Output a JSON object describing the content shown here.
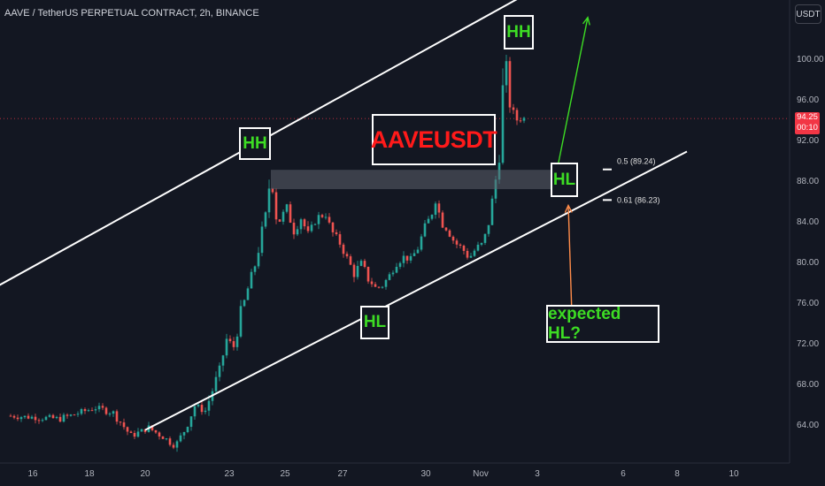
{
  "header": {
    "title": "AAVE / TetherUS PERPETUAL CONTRACT, 2h, BINANCE"
  },
  "currency_button": "USDT",
  "current_price": {
    "value": "94.25",
    "countdown": "00:10",
    "color": "#f23645"
  },
  "colors": {
    "background": "#131722",
    "up": "#26a69a",
    "down": "#ef5350",
    "accent_green": "#3ddc24",
    "title_red": "#ff1a1a"
  },
  "chart_data": {
    "type": "candlestick",
    "symbol": "AAVEUSDT",
    "yticks": [
      "100.00",
      "96.00",
      "92.00",
      "88.00",
      "84.00",
      "80.00",
      "76.00",
      "72.00",
      "68.00",
      "64.00"
    ],
    "xticks": [
      "16",
      "18",
      "20",
      "23",
      "25",
      "27",
      "30",
      "Nov",
      "3",
      "6",
      "8",
      "10"
    ],
    "ylim": [
      61.5,
      104.5
    ],
    "price_path": [
      [
        0,
        65.0
      ],
      [
        3,
        64.7
      ],
      [
        5,
        65.8
      ],
      [
        6,
        65.3
      ],
      [
        7,
        63.0
      ],
      [
        8,
        63.8
      ],
      [
        9,
        62.7
      ],
      [
        9.5,
        62.0
      ],
      [
        10,
        63.5
      ],
      [
        10.6,
        66.0
      ],
      [
        11.2,
        65.5
      ],
      [
        12,
        69.5
      ],
      [
        12.4,
        72.5
      ],
      [
        12.8,
        71.8
      ],
      [
        13.2,
        75.0
      ],
      [
        13.6,
        77.5
      ],
      [
        14,
        79.8
      ],
      [
        14.4,
        83.0
      ],
      [
        14.7,
        85.5
      ],
      [
        14.9,
        89.5
      ],
      [
        15.1,
        85.0
      ],
      [
        15.4,
        84.2
      ],
      [
        15.8,
        85.5
      ],
      [
        16.2,
        83.2
      ],
      [
        16.6,
        84.5
      ],
      [
        17,
        82.8
      ],
      [
        17.5,
        84.5
      ],
      [
        18,
        84.8
      ],
      [
        18.3,
        83.2
      ],
      [
        18.8,
        82.0
      ],
      [
        19.2,
        80.5
      ],
      [
        19.6,
        79.0
      ],
      [
        20,
        80.0
      ],
      [
        20.4,
        78.5
      ],
      [
        20.8,
        77.6
      ],
      [
        21.2,
        77.8
      ],
      [
        21.6,
        78.8
      ],
      [
        22,
        80.2
      ],
      [
        22.4,
        80.6
      ],
      [
        22.8,
        80.4
      ],
      [
        23.2,
        81.5
      ],
      [
        23.6,
        83.5
      ],
      [
        24.0,
        85.0
      ],
      [
        24.2,
        86.5
      ],
      [
        24.5,
        84.2
      ],
      [
        24.9,
        83.2
      ],
      [
        25.3,
        82.0
      ],
      [
        25.7,
        81.5
      ],
      [
        26.1,
        80.5
      ],
      [
        26.5,
        81.5
      ],
      [
        26.9,
        82.0
      ],
      [
        27.2,
        84.0
      ],
      [
        27.5,
        87.0
      ],
      [
        27.7,
        89.5
      ],
      [
        27.9,
        92.0
      ],
      [
        28.1,
        101.5
      ],
      [
        28.3,
        97.0
      ],
      [
        28.5,
        95.0
      ],
      [
        28.7,
        94.5
      ],
      [
        28.9,
        93.8
      ],
      [
        29.0,
        94.25
      ]
    ],
    "channel": {
      "upper": [
        [
          -1.0,
          77.5
        ],
        [
          31.0,
          108.3
        ]
      ],
      "lower": [
        [
          7.6,
          63.6
        ],
        [
          38.2,
          91.0
        ]
      ]
    },
    "zone": {
      "from": [
        14.7,
        89.2
      ],
      "to": [
        31.7,
        87.3
      ],
      "color": "#5d606b"
    },
    "fib_levels": [
      {
        "label": "0.5 (89.24)",
        "value": 89.24
      },
      {
        "label": "0.61 (86.23)",
        "value": 86.23
      }
    ],
    "current_price_line": 94.25,
    "annotations": {
      "title": "AAVEUSDT",
      "hh1": "HH",
      "hh2": "HH",
      "hl1": "HL",
      "hl2": "HL",
      "expected": "expected HL?"
    },
    "arrows": {
      "green": {
        "from": [
          30.9,
          89.5
        ],
        "to": [
          32.6,
          104.2
        ],
        "color": "#3ddc24"
      },
      "orange": {
        "from": [
          31.7,
          75.0
        ],
        "to": [
          31.5,
          85.7
        ],
        "color": "#ff8c4a"
      }
    }
  }
}
